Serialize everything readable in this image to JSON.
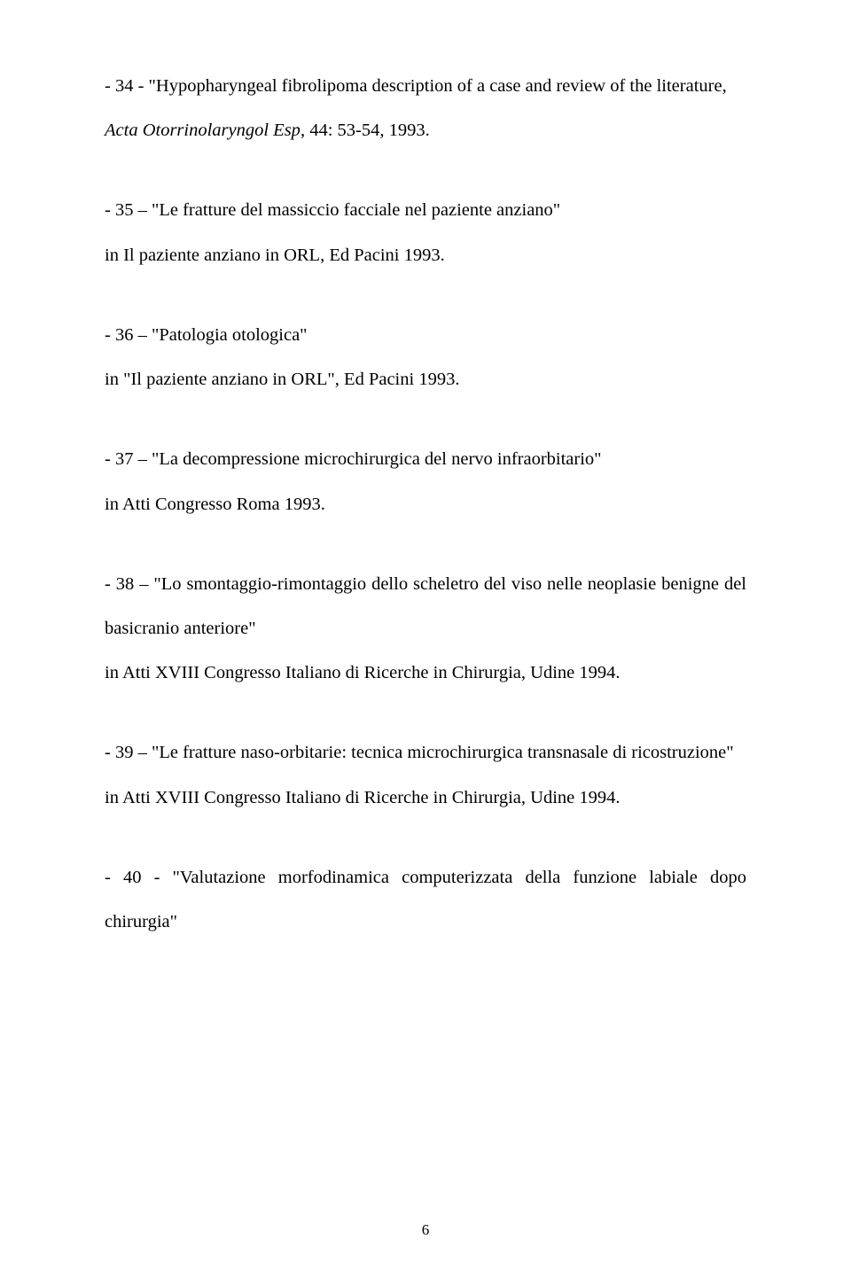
{
  "text_color": "#000000",
  "background_color": "#ffffff",
  "font_family": "Times New Roman",
  "body_font_size_pt": 15.5,
  "line_spacing": 2.45,
  "page_number": "6",
  "entries": [
    {
      "head": "- 34 - \"Hypopharyngeal fibrolipoma description of a case and review of the literature,",
      "source_italic": "Acta Otorrinolaryngol Esp",
      "source_rest": ", 44: 53-54, 1993."
    },
    {
      "head": "- 35 – \"Le fratture del massiccio facciale nel paziente anziano\"",
      "source_rest": "in Il paziente anziano in ORL, Ed Pacini 1993."
    },
    {
      "head": "- 36 – \"Patologia otologica\"",
      "source_rest": "in \"Il paziente anziano in ORL\", Ed Pacini 1993."
    },
    {
      "head": "- 37 – \"La decompressione microchirurgica del nervo infraorbitario\"",
      "source_rest": "in Atti Congresso Roma 1993."
    },
    {
      "head": "- 38 – \"Lo smontaggio-rimontaggio dello scheletro del viso nelle neoplasie benigne del basicranio anteriore\"",
      "source_rest": "in Atti XVIII Congresso Italiano di Ricerche in Chirurgia, Udine 1994."
    },
    {
      "head": "- 39 – \"Le fratture naso-orbitarie: tecnica microchirurgica transnasale di ricostruzione\"",
      "source_rest": "in Atti XVIII Congresso Italiano di Ricerche in Chirurgia, Udine 1994."
    },
    {
      "head": "- 40 - \"Valutazione morfodinamica computerizzata della funzione labiale dopo chirurgia\"",
      "source_rest": ""
    }
  ]
}
